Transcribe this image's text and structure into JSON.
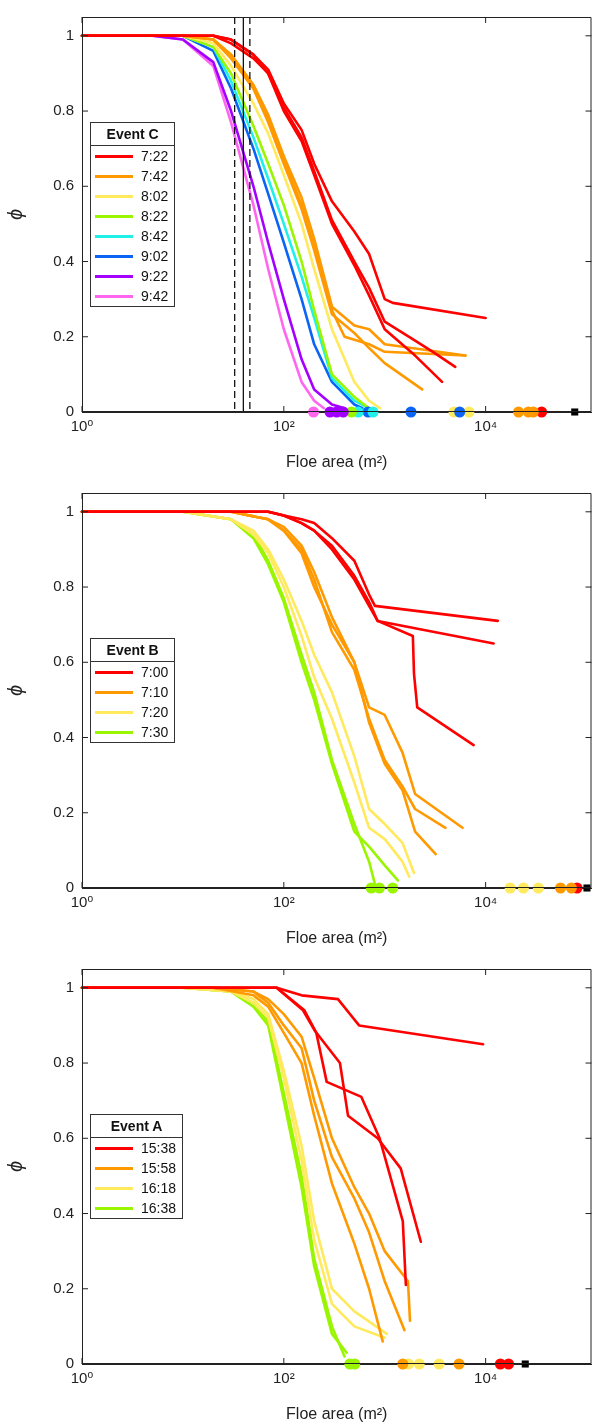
{
  "chart_data": [
    {
      "type": "line",
      "xlabel": "Floe area (m²)",
      "ylabel": "ϕ",
      "legend_title": "Event C",
      "legend": "left",
      "log": "x",
      "grid": false,
      "marker": "none",
      "xlim": [
        1,
        112000
      ],
      "xticks": [
        {
          "value": 1,
          "label": "10⁰"
        },
        {
          "value": 100,
          "label": "10²"
        },
        {
          "value": 10000,
          "label": "10⁴"
        }
      ],
      "ylim": [
        0,
        1.05
      ],
      "yticks": [
        0,
        0.2,
        0.4,
        0.6,
        0.8,
        1
      ],
      "ref_lines": [
        {
          "axis": "x",
          "value": 32.6,
          "line_style": "dashed",
          "color": "#000000"
        },
        {
          "axis": "x",
          "value": 39.7,
          "line_style": "solid",
          "color": "#000000"
        },
        {
          "axis": "x",
          "value": 46.1,
          "line_style": "dashed",
          "color": "#000000"
        }
      ],
      "series": [
        {
          "name": "7:22",
          "color": "#ff0000",
          "x": [
            1,
            10,
            20,
            30,
            50,
            70,
            100,
            150,
            200,
            300,
            500,
            700,
            1000,
            1200,
            10000
          ],
          "values": [
            1,
            1,
            1,
            0.99,
            0.95,
            0.91,
            0.82,
            0.75,
            0.66,
            0.56,
            0.48,
            0.42,
            0.3,
            0.29,
            0.25
          ]
        },
        {
          "color": "#ff0000",
          "x": [
            1,
            10,
            20,
            30,
            50,
            70,
            100,
            150,
            200,
            300,
            500,
            700,
            1000,
            2000,
            3000,
            5000
          ],
          "values": [
            1,
            1,
            1,
            0.99,
            0.95,
            0.9,
            0.81,
            0.73,
            0.64,
            0.51,
            0.4,
            0.33,
            0.24,
            0.19,
            0.16,
            0.12
          ]
        },
        {
          "color": "#ff0000",
          "x": [
            1,
            10,
            20,
            30,
            50,
            70,
            100,
            150,
            200,
            300,
            500,
            700,
            1000,
            2000,
            3700
          ],
          "values": [
            1,
            1,
            1,
            0.98,
            0.94,
            0.9,
            0.8,
            0.72,
            0.63,
            0.5,
            0.39,
            0.31,
            0.22,
            0.15,
            0.08
          ]
        },
        {
          "name": "7:42",
          "color": "#ff9900",
          "x": [
            1,
            10,
            20,
            30,
            50,
            70,
            100,
            150,
            200,
            300,
            500,
            700,
            1000,
            6300
          ],
          "values": [
            1,
            1,
            0.99,
            0.95,
            0.87,
            0.79,
            0.68,
            0.57,
            0.46,
            0.28,
            0.23,
            0.22,
            0.18,
            0.15
          ]
        },
        {
          "color": "#ff9900",
          "x": [
            1,
            10,
            20,
            30,
            50,
            70,
            100,
            150,
            200,
            300,
            400,
            700,
            1000,
            6300
          ],
          "values": [
            1,
            1,
            0.99,
            0.95,
            0.86,
            0.78,
            0.67,
            0.55,
            0.44,
            0.27,
            0.2,
            0.18,
            0.16,
            0.15
          ]
        },
        {
          "color": "#ff9900",
          "x": [
            1,
            10,
            20,
            30,
            50,
            70,
            100,
            150,
            200,
            300,
            500,
            700,
            1000,
            2350
          ],
          "values": [
            1,
            1,
            0.99,
            0.94,
            0.86,
            0.77,
            0.66,
            0.54,
            0.43,
            0.26,
            0.21,
            0.17,
            0.13,
            0.06
          ]
        },
        {
          "name": "8:02",
          "color": "#ffe95c",
          "x": [
            1,
            10,
            20,
            30,
            50,
            70,
            100,
            150,
            200,
            300,
            500,
            700,
            900
          ],
          "values": [
            1,
            1,
            0.98,
            0.92,
            0.82,
            0.74,
            0.63,
            0.5,
            0.38,
            0.22,
            0.08,
            0.03,
            0.01
          ]
        },
        {
          "name": "8:22",
          "color": "#99f500",
          "x": [
            1,
            10,
            20,
            30,
            50,
            70,
            100,
            150,
            200,
            300,
            500,
            700
          ],
          "values": [
            1,
            1,
            0.97,
            0.9,
            0.76,
            0.66,
            0.55,
            0.4,
            0.27,
            0.1,
            0.04,
            0.01
          ]
        },
        {
          "name": "8:42",
          "color": "#20f0e8",
          "x": [
            1,
            10,
            20,
            30,
            50,
            70,
            100,
            150,
            200,
            300,
            500,
            700
          ],
          "values": [
            1,
            1,
            0.97,
            0.88,
            0.73,
            0.62,
            0.5,
            0.36,
            0.25,
            0.09,
            0.03,
            0.01
          ]
        },
        {
          "name": "9:02",
          "color": "#0a64f5",
          "x": [
            1,
            10,
            20,
            30,
            50,
            70,
            100,
            150,
            200,
            300,
            500,
            600
          ],
          "values": [
            1,
            1,
            0.96,
            0.86,
            0.7,
            0.58,
            0.45,
            0.3,
            0.18,
            0.08,
            0.02,
            0.01
          ]
        },
        {
          "name": "9:22",
          "color": "#a300ff",
          "x": [
            1,
            5,
            10,
            20,
            30,
            50,
            70,
            100,
            150,
            200,
            300,
            400
          ],
          "values": [
            1,
            1,
            0.99,
            0.93,
            0.8,
            0.6,
            0.45,
            0.3,
            0.14,
            0.06,
            0.02,
            0.01
          ]
        },
        {
          "name": "9:42",
          "color": "#ff66f0",
          "x": [
            1,
            5,
            10,
            20,
            30,
            50,
            70,
            100,
            150,
            200,
            250
          ],
          "values": [
            1,
            1,
            0.99,
            0.92,
            0.77,
            0.55,
            0.38,
            0.22,
            0.08,
            0.03,
            0.01
          ]
        },
        {
          "type": "scatter",
          "marker": "circle",
          "color": "#ff66f0",
          "x": [
            197
          ],
          "values": [
            0
          ]
        },
        {
          "type": "scatter",
          "marker": "circle",
          "color": "#a300ff",
          "x": [
            287,
            334,
            388
          ],
          "values": [
            0,
            0,
            0
          ]
        },
        {
          "type": "scatter",
          "marker": "circle",
          "color": "#99f500",
          "x": [
            469
          ],
          "values": [
            0
          ]
        },
        {
          "type": "scatter",
          "marker": "circle",
          "color": "#20f0e8",
          "x": [
            546,
            766
          ],
          "values": [
            0,
            0
          ]
        },
        {
          "type": "scatter",
          "marker": "circle",
          "color": "#0a64f5",
          "x": [
            684,
            1820,
            5530
          ],
          "values": [
            0,
            0,
            0
          ]
        },
        {
          "type": "scatter",
          "marker": "circle",
          "color": "#ffe95c",
          "x": [
            4860,
            6830
          ],
          "values": [
            0,
            0
          ]
        },
        {
          "type": "scatter",
          "marker": "circle",
          "color": "#ff9900",
          "x": [
            21200,
            26500,
            29700
          ],
          "values": [
            0,
            0,
            0
          ]
        },
        {
          "type": "scatter",
          "marker": "circle",
          "color": "#ff0000",
          "x": [
            35900
          ],
          "values": [
            0
          ]
        },
        {
          "type": "scatter",
          "marker": "square",
          "color": "#000000",
          "x": [
            76400
          ],
          "values": [
            0
          ]
        }
      ]
    },
    {
      "type": "line",
      "xlabel": "Floe area (m²)",
      "ylabel": "ϕ",
      "legend_title": "Event B",
      "legend": "left",
      "log": "x",
      "grid": false,
      "marker": "none",
      "xlim": [
        1,
        112000
      ],
      "xticks": [
        {
          "value": 1,
          "label": "10⁰"
        },
        {
          "value": 100,
          "label": "10²"
        },
        {
          "value": 10000,
          "label": "10⁴"
        }
      ],
      "ylim": [
        0,
        1.05
      ],
      "yticks": [
        0,
        0.2,
        0.4,
        0.6,
        0.8,
        1
      ],
      "series": [
        {
          "name": "7:00",
          "color": "#ff0000",
          "x": [
            1,
            30,
            70,
            100,
            150,
            200,
            300,
            500,
            700,
            800,
            13200
          ],
          "values": [
            1,
            1,
            1,
            0.99,
            0.98,
            0.97,
            0.93,
            0.87,
            0.78,
            0.75,
            0.71
          ]
        },
        {
          "color": "#ff0000",
          "x": [
            1,
            30,
            70,
            100,
            150,
            200,
            300,
            500,
            700,
            850,
            12000
          ],
          "values": [
            1,
            1,
            1,
            0.99,
            0.97,
            0.95,
            0.91,
            0.83,
            0.76,
            0.71,
            0.65
          ]
        },
        {
          "color": "#ff0000",
          "x": [
            1,
            30,
            70,
            100,
            150,
            200,
            300,
            500,
            700,
            850,
            1900,
            1950,
            2100,
            7600
          ],
          "values": [
            1,
            1,
            1,
            0.99,
            0.97,
            0.95,
            0.9,
            0.82,
            0.75,
            0.71,
            0.67,
            0.57,
            0.48,
            0.38
          ]
        },
        {
          "name": "7:10",
          "color": "#ff9900",
          "x": [
            1,
            30,
            70,
            100,
            150,
            200,
            300,
            500,
            700,
            1000,
            1500,
            2000,
            5900
          ],
          "values": [
            1,
            1,
            0.98,
            0.96,
            0.91,
            0.84,
            0.72,
            0.6,
            0.48,
            0.46,
            0.36,
            0.25,
            0.16
          ]
        },
        {
          "color": "#ff9900",
          "x": [
            1,
            30,
            70,
            100,
            150,
            200,
            300,
            500,
            700,
            1000,
            1500,
            2000,
            4000
          ],
          "values": [
            1,
            1,
            0.98,
            0.95,
            0.9,
            0.82,
            0.68,
            0.58,
            0.45,
            0.34,
            0.27,
            0.21,
            0.16
          ]
        },
        {
          "color": "#ff9900",
          "x": [
            1,
            30,
            70,
            100,
            150,
            200,
            300,
            500,
            700,
            1000,
            1500,
            2000,
            3200
          ],
          "values": [
            1,
            1,
            0.98,
            0.95,
            0.89,
            0.8,
            0.7,
            0.6,
            0.44,
            0.33,
            0.26,
            0.15,
            0.09
          ]
        },
        {
          "name": "7:20",
          "color": "#ffe95c",
          "x": [
            1,
            10,
            30,
            50,
            70,
            100,
            150,
            200,
            300,
            500,
            700,
            1000,
            1500,
            1950
          ],
          "values": [
            1,
            1,
            0.98,
            0.95,
            0.9,
            0.82,
            0.71,
            0.62,
            0.52,
            0.35,
            0.21,
            0.17,
            0.12,
            0.04
          ]
        },
        {
          "color": "#ffe95c",
          "x": [
            1,
            10,
            30,
            50,
            70,
            100,
            150,
            200,
            300,
            500,
            700,
            1000,
            1500,
            1750
          ],
          "values": [
            1,
            1,
            0.98,
            0.94,
            0.89,
            0.8,
            0.67,
            0.56,
            0.45,
            0.28,
            0.16,
            0.13,
            0.07,
            0.03
          ]
        },
        {
          "name": "7:30",
          "color": "#99f500",
          "x": [
            1,
            10,
            30,
            50,
            70,
            100,
            150,
            200,
            300,
            500,
            700,
            800
          ],
          "values": [
            1,
            1,
            0.98,
            0.94,
            0.87,
            0.77,
            0.62,
            0.52,
            0.34,
            0.17,
            0.07,
            0.01
          ]
        },
        {
          "color": "#99f500",
          "x": [
            1,
            10,
            30,
            50,
            70,
            100,
            150,
            200,
            300,
            500,
            700,
            1000,
            1350
          ],
          "values": [
            1,
            1,
            0.98,
            0.93,
            0.86,
            0.76,
            0.6,
            0.5,
            0.33,
            0.15,
            0.11,
            0.06,
            0.02
          ]
        },
        {
          "type": "scatter",
          "marker": "circle",
          "color": "#99f500",
          "x": [
            735,
            887,
            1200
          ],
          "values": [
            0,
            0,
            0
          ]
        },
        {
          "type": "scatter",
          "marker": "circle",
          "color": "#ffe95c",
          "x": [
            17500,
            23700,
            33300
          ],
          "values": [
            0,
            0,
            0
          ]
        },
        {
          "type": "scatter",
          "marker": "circle",
          "color": "#ff9900",
          "x": [
            55200,
            70800
          ],
          "values": [
            0,
            0
          ]
        },
        {
          "type": "scatter",
          "marker": "circle",
          "color": "#ff0000",
          "x": [
            80500
          ],
          "values": [
            0
          ]
        },
        {
          "type": "scatter",
          "marker": "square",
          "color": "#000000",
          "x": [
            101000
          ],
          "values": [
            0
          ]
        }
      ]
    },
    {
      "type": "line",
      "xlabel": "Floe area (m²)",
      "ylabel": "ϕ",
      "legend_title": "Event A",
      "legend": "left",
      "log": "x",
      "grid": false,
      "marker": "none",
      "xlim": [
        1,
        112000
      ],
      "xticks": [
        {
          "value": 1,
          "label": "10⁰"
        },
        {
          "value": 100,
          "label": "10²"
        },
        {
          "value": 10000,
          "label": "10⁴"
        }
      ],
      "ylim": [
        0,
        1.05
      ],
      "yticks": [
        0,
        0.2,
        0.4,
        0.6,
        0.8,
        1
      ],
      "series": [
        {
          "name": "15:38",
          "color": "#ff0000",
          "x": [
            1,
            85,
            150,
            344,
            557,
            9440
          ],
          "values": [
            1,
            1,
            0.98,
            0.97,
            0.9,
            0.85
          ]
        },
        {
          "color": "#ff0000",
          "x": [
            1,
            85,
            155,
            204,
            360,
            433,
            852,
            1440,
            2280
          ],
          "values": [
            1,
            1,
            0.94,
            0.885,
            0.8,
            0.66,
            0.6,
            0.52,
            0.325
          ]
        },
        {
          "color": "#ff0000",
          "x": [
            1,
            85,
            160,
            210,
            266,
            587,
            890,
            1510,
            1620
          ],
          "values": [
            1,
            1,
            0.94,
            0.88,
            0.75,
            0.71,
            0.6,
            0.38,
            0.21
          ]
        },
        {
          "name": "15:58",
          "color": "#ff9900",
          "x": [
            1,
            20,
            50,
            70,
            100,
            150,
            200,
            300,
            500,
            700,
            1000,
            1700,
            1780
          ],
          "values": [
            1,
            1,
            0.99,
            0.97,
            0.93,
            0.87,
            0.76,
            0.6,
            0.47,
            0.4,
            0.3,
            0.22,
            0.115
          ]
        },
        {
          "color": "#ff9900",
          "x": [
            1,
            20,
            50,
            70,
            100,
            150,
            200,
            300,
            500,
            700,
            1000,
            1570
          ],
          "values": [
            1,
            1,
            0.99,
            0.96,
            0.9,
            0.84,
            0.7,
            0.55,
            0.44,
            0.35,
            0.22,
            0.09
          ]
        },
        {
          "color": "#ff9900",
          "x": [
            1,
            20,
            50,
            70,
            100,
            150,
            200,
            300,
            500,
            700,
            955
          ],
          "values": [
            1,
            1,
            0.98,
            0.95,
            0.88,
            0.8,
            0.66,
            0.48,
            0.32,
            0.2,
            0.06
          ]
        },
        {
          "name": "16:18",
          "color": "#ffe95c",
          "x": [
            1,
            10,
            30,
            50,
            70,
            100,
            150,
            200,
            300,
            500,
            1050
          ],
          "values": [
            1,
            1,
            0.99,
            0.97,
            0.93,
            0.78,
            0.58,
            0.38,
            0.2,
            0.14,
            0.08
          ]
        },
        {
          "color": "#ffe95c",
          "x": [
            1,
            10,
            30,
            50,
            70,
            100,
            150,
            200,
            300,
            500,
            1000
          ],
          "values": [
            1,
            1,
            0.99,
            0.96,
            0.92,
            0.76,
            0.54,
            0.33,
            0.16,
            0.1,
            0.07
          ]
        },
        {
          "name": "16:38",
          "color": "#99f500",
          "x": [
            1,
            10,
            30,
            50,
            70,
            100,
            150,
            200,
            300,
            400
          ],
          "values": [
            1,
            1,
            0.99,
            0.96,
            0.91,
            0.72,
            0.5,
            0.28,
            0.1,
            0.02
          ]
        },
        {
          "color": "#99f500",
          "x": [
            1,
            10,
            30,
            50,
            70,
            100,
            150,
            200,
            300,
            420
          ],
          "values": [
            1,
            1,
            0.99,
            0.95,
            0.9,
            0.7,
            0.47,
            0.26,
            0.08,
            0.03
          ]
        },
        {
          "type": "scatter",
          "marker": "circle",
          "color": "#99f500",
          "x": [
            451,
            505
          ],
          "values": [
            0,
            0
          ]
        },
        {
          "type": "scatter",
          "marker": "circle",
          "color": "#ff9900",
          "x": [
            1510,
            5450
          ],
          "values": [
            0,
            0
          ]
        },
        {
          "type": "scatter",
          "marker": "circle",
          "color": "#ffe95c",
          "x": [
            1720,
            2200,
            3460
          ],
          "values": [
            0,
            0,
            0
          ]
        },
        {
          "type": "scatter",
          "marker": "circle",
          "color": "#ff0000",
          "x": [
            14000,
            16900
          ],
          "values": [
            0,
            0
          ]
        },
        {
          "type": "scatter",
          "marker": "square",
          "color": "#000000",
          "x": [
            24700
          ],
          "values": [
            0
          ]
        }
      ]
    }
  ]
}
